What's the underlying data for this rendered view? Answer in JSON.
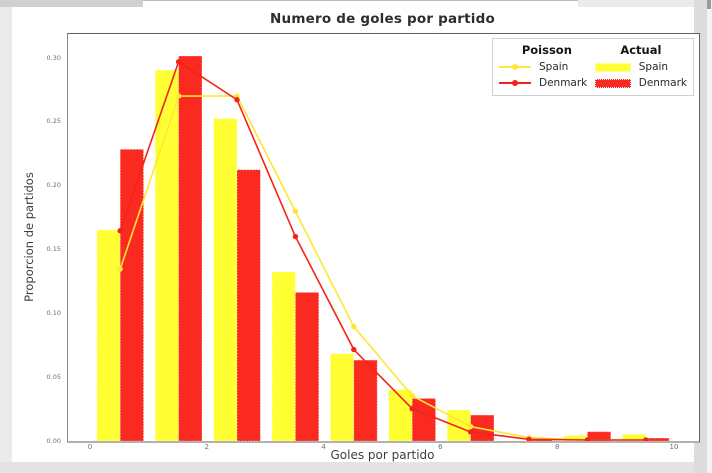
{
  "figure": {
    "title": "Numero de goles por partido",
    "xlabel": "Goles por partido",
    "ylabel": "Proporcion de partidos"
  },
  "legend": {
    "poisson_header": "Poisson",
    "actual_header": "Actual",
    "poisson_entries": [
      {
        "label": "Spain"
      },
      {
        "label": "Denmark"
      }
    ],
    "actual_entries": [
      {
        "label": "Spain"
      },
      {
        "label": "Denmark"
      }
    ]
  },
  "chart_data": {
    "type": "bar",
    "title": "Numero de goles por partido",
    "xlabel": "Goles por partido",
    "ylabel": "Proporcion de partidos",
    "x_goals": [
      0,
      1,
      2,
      3,
      4,
      5,
      6,
      7,
      8,
      9
    ],
    "actual_bars": {
      "spain": [
        0.166,
        0.291,
        0.253,
        0.133,
        0.069,
        0.041,
        0.025,
        0.001,
        0.005,
        0.006
      ],
      "denmark": [
        0.229,
        0.302,
        0.213,
        0.117,
        0.064,
        0.034,
        0.021,
        0.002,
        0.008,
        0.003
      ]
    },
    "poisson_lines": {
      "spain": [
        0.1353,
        0.2707,
        0.2707,
        0.1804,
        0.0902,
        0.0361,
        0.012,
        0.0034,
        0.0009,
        0.0002
      ],
      "denmark": [
        0.1653,
        0.2975,
        0.2678,
        0.1607,
        0.0723,
        0.026,
        0.0078,
        0.002,
        0.0005,
        0.0001
      ]
    },
    "colors": {
      "spain_bar": "#ffff33",
      "denmark_bar": "#fb2a20",
      "spain_line": "#ffe636",
      "denmark_line": "#f3231a"
    },
    "ytick_labels": [
      "0.00",
      "0.05",
      "0.10",
      "0.15",
      "0.20",
      "0.25",
      "0.30"
    ],
    "ytick_values": [
      0,
      0.05,
      0.1,
      0.15,
      0.2,
      0.25,
      0.3
    ],
    "xtick_labels": [
      "0",
      "2",
      "4",
      "6",
      "8",
      "10"
    ],
    "xtick_values": [
      0,
      2,
      4,
      6,
      8,
      10
    ],
    "xlim": [
      -0.4,
      10.4
    ],
    "ylim": [
      0,
      0.319
    ],
    "grid": false,
    "legend_position": "upper right"
  }
}
